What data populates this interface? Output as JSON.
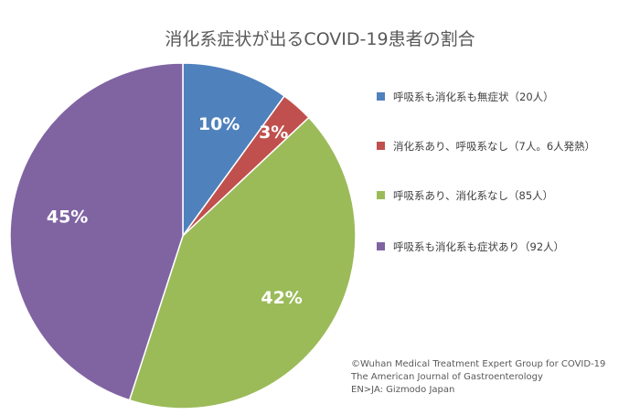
{
  "chart_data": {
    "type": "pie",
    "title": "消化系症状が出るCOVID-19患者の割合",
    "start_angle_deg": 0,
    "direction": "clockwise",
    "slices": [
      {
        "label": "呼吸系も消化系も無症状（20人）",
        "value": 10,
        "display": "10%",
        "color": "#4f81bd"
      },
      {
        "label": "消化系あり、呼吸系なし（7人。6人発熱）",
        "value": 3,
        "display": "3%",
        "color": "#c0504d"
      },
      {
        "label": "呼吸系あり、消化系なし（85人）",
        "value": 42,
        "display": "42%",
        "color": "#9bbb59"
      },
      {
        "label": "呼吸系も消化系も症状あり（92人）",
        "value": 45,
        "display": "45%",
        "color": "#8064a2"
      }
    ],
    "legend_position": "right"
  },
  "credits": [
    "©Wuhan Medical Treatment Expert Group for COVID-19",
    "The American Journal of Gastroenterology",
    "EN>JA: Gizmodo Japan"
  ]
}
